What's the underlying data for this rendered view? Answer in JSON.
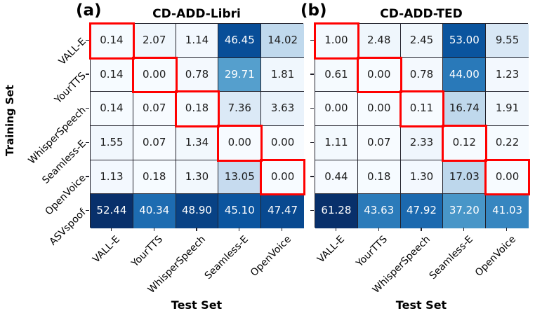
{
  "shared": {
    "ylabel": "Training Set",
    "xlabel": "Test Set"
  },
  "chart_data": [
    {
      "type": "heatmap",
      "panel_tag": "(a)",
      "title": "CD-ADD-Libri",
      "xlabel": "Test Set",
      "ylabel": "Training Set",
      "x_tick_labels": [
        "VALL-E",
        "YourTTS",
        "WhisperSpeech",
        "Seamless-E",
        "OpenVoice"
      ],
      "y_tick_labels": [
        "VALL-E",
        "YourTTS",
        "WhisperSpeech",
        "Seamless-E",
        "OpenVoice",
        "ASVspoof"
      ],
      "values": [
        [
          0.14,
          2.07,
          1.14,
          46.45,
          14.02
        ],
        [
          0.14,
          0.0,
          0.78,
          29.71,
          1.81
        ],
        [
          0.14,
          0.07,
          0.18,
          7.36,
          3.63
        ],
        [
          1.55,
          0.07,
          1.34,
          0.0,
          0.0
        ],
        [
          1.13,
          0.18,
          1.3,
          13.05,
          0.0
        ],
        [
          52.44,
          40.34,
          48.9,
          45.1,
          47.47
        ]
      ],
      "value_decimals": 2,
      "colormap": "Blues",
      "vmin": 0,
      "vmax": 52.44,
      "highlight_cells": [
        [
          0,
          0
        ],
        [
          1,
          1
        ],
        [
          2,
          2
        ],
        [
          3,
          3
        ],
        [
          4,
          4
        ]
      ],
      "show_y_tick_labels": true,
      "legend": "none",
      "grid": "cell-borders"
    },
    {
      "type": "heatmap",
      "panel_tag": "(b)",
      "title": "CD-ADD-TED",
      "xlabel": "Test Set",
      "ylabel": "Training Set",
      "x_tick_labels": [
        "VALL-E",
        "YourTTS",
        "WhisperSpeech",
        "Seamless-E",
        "OpenVoice"
      ],
      "y_tick_labels": [
        "VALL-E",
        "YourTTS",
        "WhisperSpeech",
        "Seamless-E",
        "OpenVoice",
        "ASVspoof"
      ],
      "values": [
        [
          1.0,
          2.48,
          2.45,
          53.0,
          9.55
        ],
        [
          0.61,
          0.0,
          0.78,
          44.0,
          1.23
        ],
        [
          0.0,
          0.0,
          0.11,
          16.74,
          1.91
        ],
        [
          1.11,
          0.07,
          2.33,
          0.12,
          0.22
        ],
        [
          0.44,
          0.18,
          1.3,
          17.03,
          0.0
        ],
        [
          61.28,
          43.63,
          47.92,
          37.2,
          41.03
        ]
      ],
      "value_decimals": 2,
      "colormap": "Blues",
      "vmin": 0,
      "vmax": 61.28,
      "highlight_cells": [
        [
          0,
          0
        ],
        [
          1,
          1
        ],
        [
          2,
          2
        ],
        [
          3,
          3
        ],
        [
          4,
          4
        ]
      ],
      "show_y_tick_labels": false,
      "legend": "none",
      "grid": "cell-borders"
    }
  ],
  "style": {
    "highlight_color": "#ff0000",
    "grid_line_color": "#22222c",
    "text_dark": "#1c1c1c",
    "text_light": "#ffffff",
    "background": "#ffffff",
    "colormap_blues": [
      "#f7fbff",
      "#deebf7",
      "#c6dbef",
      "#9ecae1",
      "#6baed6",
      "#4292c6",
      "#2171b5",
      "#08519c",
      "#08306b"
    ]
  }
}
